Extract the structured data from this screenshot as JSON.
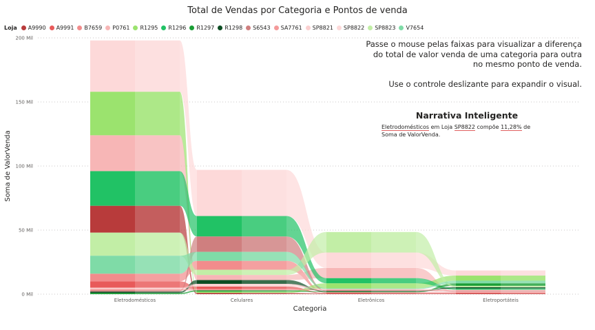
{
  "chart_data": {
    "type": "ribbon",
    "title": "Total de Vendas por Categoria e Pontos de venda",
    "xlabel": "Categoria",
    "ylabel": "Soma de ValorVenda",
    "ylim": [
      0,
      200
    ],
    "y_ticks": [
      {
        "value": 0,
        "label": "0 Mil"
      },
      {
        "value": 50,
        "label": "50 Mil"
      },
      {
        "value": 100,
        "label": "100 Mil"
      },
      {
        "value": 150,
        "label": "150 Mil"
      },
      {
        "value": 200,
        "label": "200 Mil"
      }
    ],
    "grid": true,
    "legend_title": "Loja",
    "legend_position": "top-left",
    "categories": [
      "Eletrodomésticos",
      "Celulares",
      "Eletrônicos",
      "Eletroportáteis"
    ],
    "series": [
      {
        "name": "A9990",
        "color": "#b83b3b",
        "values": [
          21,
          1,
          0.5,
          0.5
        ]
      },
      {
        "name": "A9991",
        "color": "#e85a5a",
        "values": [
          5,
          2,
          0.5,
          0.5
        ]
      },
      {
        "name": "B7659",
        "color": "#f28c8c",
        "values": [
          6,
          7,
          0.5,
          0.5
        ]
      },
      {
        "name": "P0761",
        "color": "#f7b6b6",
        "values": [
          28,
          4,
          8,
          0.5
        ]
      },
      {
        "name": "R1295",
        "color": "#9be36e",
        "values": [
          34,
          1,
          4,
          4
        ]
      },
      {
        "name": "R1296",
        "color": "#21c265",
        "values": [
          27,
          16,
          4,
          1
        ]
      },
      {
        "name": "R1297",
        "color": "#1a9e35",
        "values": [
          1,
          1,
          0.5,
          2
        ]
      },
      {
        "name": "R1298",
        "color": "#0c4d23",
        "values": [
          1,
          3,
          0.5,
          1
        ]
      },
      {
        "name": "S6543",
        "color": "#cf7f7f",
        "values": [
          1,
          12,
          0.5,
          0.5
        ]
      },
      {
        "name": "SA7761",
        "color": "#f49a9a",
        "values": [
          1,
          1,
          0.5,
          0.5
        ]
      },
      {
        "name": "SP8821",
        "color": "#fbd0d0",
        "values": [
          1,
          2,
          0.5,
          0.5
        ]
      },
      {
        "name": "SP8822",
        "color": "#fdd9d9",
        "values": [
          40,
          36,
          12,
          4
        ]
      },
      {
        "name": "SP8823",
        "color": "#c2eea6",
        "values": [
          18,
          4,
          16,
          1
        ]
      },
      {
        "name": "V7654",
        "color": "#7fdba7",
        "values": [
          14,
          7,
          0.5,
          2
        ]
      }
    ]
  },
  "hint": {
    "line1": "Passe o mouse pelas faixas para visualizar a diferença do total de valor venda de uma categoria para outra no mesmo ponto de venda.",
    "line2": "Use o controle deslizante para expandir o visual."
  },
  "narrative": {
    "title": "Narrativa Inteligente",
    "category": "Eletrodomésticos",
    "text_em_loja": " em Loja ",
    "store": "SP8822",
    "text_compoe": " compõe ",
    "percent": "11,28%",
    "text_rest": " de Soma de ValorVenda."
  }
}
